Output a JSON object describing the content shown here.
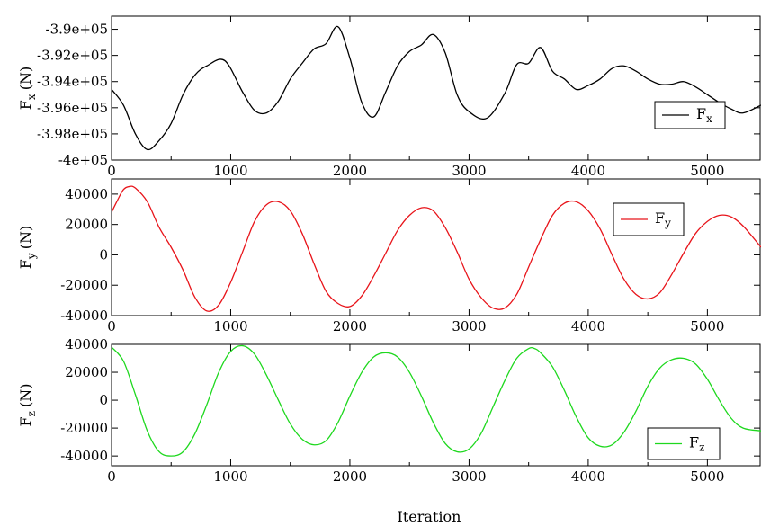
{
  "chart_data": [
    {
      "type": "line",
      "ylabel_main": "F",
      "ylabel_sub": "x",
      "ylabel_unit": "(N)",
      "xlim": [
        0,
        5450
      ],
      "ylim": [
        -400000,
        -389000
      ],
      "xticks": [
        {
          "v": 0,
          "label": "0"
        },
        {
          "v": 1000,
          "label": "1000"
        },
        {
          "v": 2000,
          "label": "2000"
        },
        {
          "v": 3000,
          "label": "3000"
        },
        {
          "v": 4000,
          "label": "4000"
        },
        {
          "v": 5000,
          "label": "5000"
        }
      ],
      "yticks": [
        {
          "v": -390000,
          "label": "-3.9e+05"
        },
        {
          "v": -392000,
          "label": "-3.92e+05"
        },
        {
          "v": -394000,
          "label": "-3.94e+05"
        },
        {
          "v": -396000,
          "label": "-3.96e+05"
        },
        {
          "v": -398000,
          "label": "-3.98e+05"
        },
        {
          "v": -400000,
          "label": "-4e+05"
        }
      ],
      "legend": {
        "main": "F",
        "sub": "x"
      },
      "legend_position": "right",
      "color": "#000000",
      "series": [
        {
          "x": [
            0,
            100,
            200,
            300,
            400,
            500,
            600,
            700,
            800,
            950,
            1100,
            1200,
            1300,
            1400,
            1500,
            1600,
            1700,
            1800,
            1900,
            2000,
            2100,
            2200,
            2300,
            2400,
            2500,
            2600,
            2700,
            2800,
            2900,
            3000,
            3150,
            3300,
            3400,
            3500,
            3600,
            3700,
            3800,
            3900,
            4000,
            4100,
            4200,
            4300,
            4400,
            4500,
            4600,
            4700,
            4800,
            4900,
            5000,
            5100,
            5200,
            5300,
            5450
          ],
          "y": [
            -394600,
            -395800,
            -398000,
            -399200,
            -398500,
            -397200,
            -395000,
            -393500,
            -392800,
            -392400,
            -394800,
            -396200,
            -396400,
            -395500,
            -393800,
            -392600,
            -391500,
            -391100,
            -389800,
            -392200,
            -395600,
            -396700,
            -394800,
            -392800,
            -391700,
            -391200,
            -390400,
            -391800,
            -395000,
            -396300,
            -396800,
            -394900,
            -392700,
            -392600,
            -391400,
            -393200,
            -393800,
            -394600,
            -394300,
            -393800,
            -393000,
            -392800,
            -393200,
            -393800,
            -394200,
            -394200,
            -394000,
            -394400,
            -395000,
            -395600,
            -396100,
            -396400,
            -395800
          ]
        }
      ]
    },
    {
      "type": "line",
      "ylabel_main": "F",
      "ylabel_sub": "y",
      "ylabel_unit": "(N)",
      "xlim": [
        0,
        5450
      ],
      "ylim": [
        -40000,
        50000
      ],
      "xticks": [
        {
          "v": 0,
          "label": "0"
        },
        {
          "v": 1000,
          "label": "1000"
        },
        {
          "v": 2000,
          "label": "2000"
        },
        {
          "v": 3000,
          "label": "3000"
        },
        {
          "v": 4000,
          "label": "4000"
        },
        {
          "v": 5000,
          "label": "5000"
        }
      ],
      "yticks": [
        {
          "v": 40000,
          "label": "40000"
        },
        {
          "v": 20000,
          "label": "20000"
        },
        {
          "v": 0,
          "label": "0"
        },
        {
          "v": -20000,
          "label": "-20000"
        },
        {
          "v": -40000,
          "label": "-40000"
        }
      ],
      "legend": {
        "main": "F",
        "sub": "y"
      },
      "legend_position": "top-right",
      "color": "#e8141a",
      "series": [
        {
          "x": [
            0,
            50,
            100,
            150,
            200,
            300,
            400,
            500,
            600,
            700,
            800,
            900,
            1000,
            1100,
            1200,
            1300,
            1400,
            1500,
            1600,
            1700,
            1800,
            1900,
            2000,
            2100,
            2200,
            2300,
            2400,
            2500,
            2600,
            2700,
            2800,
            2900,
            3000,
            3100,
            3200,
            3300,
            3400,
            3500,
            3600,
            3700,
            3800,
            3900,
            4000,
            4100,
            4200,
            4300,
            4400,
            4500,
            4600,
            4700,
            4800,
            4900,
            5000,
            5100,
            5200,
            5300,
            5450
          ],
          "y": [
            28000,
            36000,
            43000,
            45000,
            44000,
            35000,
            18000,
            5000,
            -10000,
            -28000,
            -37000,
            -33000,
            -18000,
            2000,
            22000,
            33000,
            35000,
            29000,
            14000,
            -6000,
            -24000,
            -32000,
            -34000,
            -27000,
            -14000,
            1000,
            16000,
            26000,
            31000,
            29000,
            18000,
            2000,
            -16000,
            -28000,
            -35000,
            -35000,
            -26000,
            -8000,
            10000,
            26000,
            34000,
            35000,
            29000,
            17000,
            0,
            -16000,
            -26000,
            -29000,
            -25000,
            -13000,
            1000,
            14000,
            22000,
            26000,
            25000,
            19000,
            5000
          ]
        }
      ]
    },
    {
      "type": "line",
      "ylabel_main": "F",
      "ylabel_sub": "z",
      "ylabel_unit": "(N)",
      "xlabel": "Iteration",
      "xlim": [
        0,
        5450
      ],
      "ylim": [
        -47000,
        40000
      ],
      "xticks": [
        {
          "v": 0,
          "label": "0"
        },
        {
          "v": 1000,
          "label": "1000"
        },
        {
          "v": 2000,
          "label": "2000"
        },
        {
          "v": 3000,
          "label": "3000"
        },
        {
          "v": 4000,
          "label": "4000"
        },
        {
          "v": 5000,
          "label": "5000"
        }
      ],
      "yticks": [
        {
          "v": 40000,
          "label": "40000"
        },
        {
          "v": 20000,
          "label": "20000"
        },
        {
          "v": 0,
          "label": "0"
        },
        {
          "v": -20000,
          "label": "-20000"
        },
        {
          "v": -40000,
          "label": "-40000"
        }
      ],
      "legend": {
        "main": "F",
        "sub": "z"
      },
      "legend_position": "bottom-right",
      "color": "#1ed81e",
      "series": [
        {
          "x": [
            0,
            100,
            200,
            300,
            400,
            500,
            600,
            700,
            800,
            900,
            1000,
            1100,
            1200,
            1300,
            1400,
            1500,
            1600,
            1700,
            1800,
            1900,
            2000,
            2100,
            2200,
            2300,
            2400,
            2500,
            2600,
            2700,
            2800,
            2900,
            3000,
            3100,
            3200,
            3300,
            3400,
            3500,
            3550,
            3600,
            3700,
            3800,
            3900,
            4000,
            4100,
            4200,
            4300,
            4400,
            4500,
            4600,
            4700,
            4800,
            4900,
            5000,
            5100,
            5200,
            5300,
            5450
          ],
          "y": [
            38000,
            28000,
            4000,
            -22000,
            -37000,
            -40000,
            -37000,
            -24000,
            -3000,
            20000,
            35000,
            39000,
            33000,
            18000,
            0,
            -17000,
            -28000,
            -32000,
            -29000,
            -16000,
            3000,
            20000,
            31000,
            34000,
            31000,
            20000,
            3000,
            -16000,
            -31000,
            -37000,
            -35000,
            -24000,
            -5000,
            14000,
            30000,
            37000,
            37000,
            34000,
            24000,
            7000,
            -12000,
            -27000,
            -33000,
            -32000,
            -23000,
            -8000,
            10000,
            23000,
            29000,
            30000,
            26000,
            15000,
            0,
            -13000,
            -20000,
            -22000
          ]
        }
      ]
    }
  ]
}
